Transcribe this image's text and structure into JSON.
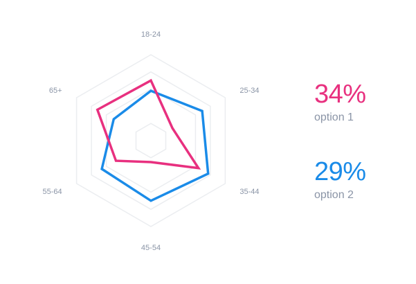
{
  "chart_data": {
    "type": "radar",
    "categories": [
      "18-24",
      "25-34",
      "35-44",
      "45-54",
      "55-64",
      "65+"
    ],
    "max": 10,
    "grid_levels": [
      2,
      6,
      8,
      10
    ],
    "series": [
      {
        "name": "option 1",
        "color": "#e8307f",
        "values": [
          7.0,
          2.9,
          6.4,
          2.5,
          4.7,
          7.2
        ]
      },
      {
        "name": "option 2",
        "color": "#1a8be8",
        "values": [
          5.8,
          6.9,
          7.7,
          7.0,
          6.6,
          5.0
        ]
      }
    ]
  },
  "legend": [
    {
      "value": "34%",
      "label": "option 1",
      "color": "#e8307f"
    },
    {
      "value": "29%",
      "label": "option 2",
      "color": "#1a8be8"
    }
  ]
}
